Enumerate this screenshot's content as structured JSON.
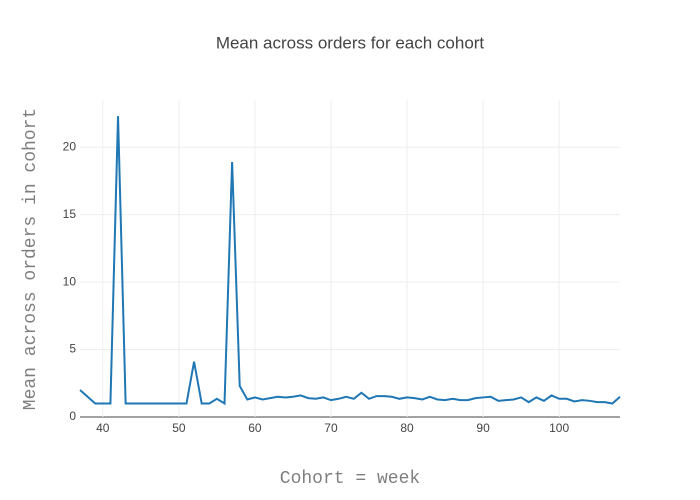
{
  "chart_data": {
    "type": "line",
    "title": "Mean across orders for each cohort",
    "x_label": "Cohort = week",
    "y_label": "Mean across orders in cohort",
    "x": [
      37,
      38,
      39,
      40,
      41,
      42,
      43,
      44,
      45,
      46,
      47,
      48,
      49,
      50,
      51,
      52,
      53,
      54,
      55,
      56,
      57,
      58,
      59,
      60,
      61,
      62,
      63,
      64,
      65,
      66,
      67,
      68,
      69,
      70,
      71,
      72,
      73,
      74,
      75,
      76,
      77,
      78,
      79,
      80,
      81,
      82,
      83,
      84,
      85,
      86,
      87,
      88,
      89,
      90,
      91,
      92,
      93,
      94,
      95,
      96,
      97,
      98,
      99,
      100,
      101,
      102,
      103,
      104,
      105,
      106,
      107,
      108
    ],
    "series": [
      {
        "color": "#1f77b4",
        "values": [
          2.0,
          1.5,
          1.0,
          1.0,
          1.0,
          22.3,
          1.0,
          1.0,
          1.0,
          1.0,
          1.0,
          1.0,
          1.0,
          1.0,
          1.0,
          4.1,
          1.0,
          1.0,
          1.35,
          1.0,
          18.9,
          2.3,
          1.3,
          1.45,
          1.3,
          1.4,
          1.5,
          1.45,
          1.5,
          1.6,
          1.4,
          1.35,
          1.45,
          1.25,
          1.35,
          1.5,
          1.35,
          1.8,
          1.35,
          1.55,
          1.55,
          1.5,
          1.35,
          1.45,
          1.4,
          1.3,
          1.5,
          1.3,
          1.25,
          1.35,
          1.25,
          1.25,
          1.4,
          1.45,
          1.5,
          1.2,
          1.25,
          1.3,
          1.45,
          1.1,
          1.45,
          1.2,
          1.6,
          1.35,
          1.35,
          1.15,
          1.25,
          1.2,
          1.1,
          1.1,
          1.0,
          1.5
        ]
      }
    ],
    "xlim": [
      37,
      108
    ],
    "ylim": [
      0,
      23.5
    ],
    "xticks": [
      40,
      50,
      60,
      70,
      80,
      90,
      100
    ],
    "yticks": [
      0,
      5,
      10,
      15,
      20
    ],
    "grid": true
  }
}
